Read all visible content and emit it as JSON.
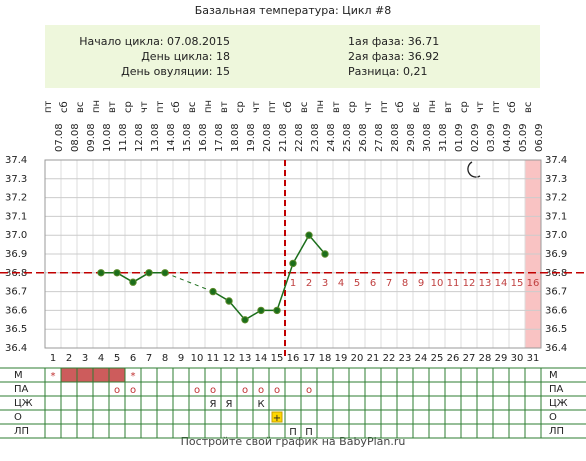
{
  "chart_data": {
    "type": "line",
    "title": "Базальная температура: Цикл #8",
    "info_left": [
      "Начало цикла: 07.08.2015",
      "День цикла: 18",
      "День овуляции: 15"
    ],
    "info_right": [
      "1ая фаза: 36.71",
      "2ая фаза: 36.92",
      "Разница: 0,21"
    ],
    "weekdays": [
      "пт",
      "сб",
      "вс",
      "пн",
      "вт",
      "ср",
      "чт",
      "пт",
      "сб",
      "вс",
      "пн",
      "вт",
      "ср",
      "чт",
      "пт",
      "сб",
      "вс",
      "пн",
      "вт",
      "ср",
      "чт",
      "пт",
      "сб",
      "вс",
      "пн",
      "вт",
      "ср",
      "чт",
      "пт",
      "сб",
      "вс"
    ],
    "dates": [
      "07.08",
      "08.08",
      "09.08",
      "10.08",
      "11.08",
      "12.08",
      "13.08",
      "14.08",
      "15.08",
      "16.08",
      "17.08",
      "18.08",
      "19.08",
      "20.08",
      "21.08",
      "22.08",
      "23.08",
      "24.08",
      "25.08",
      "26.08",
      "27.08",
      "28.08",
      "29.08",
      "30.08",
      "31.08",
      "01.09",
      "02.09",
      "03.09",
      "04.09",
      "05.09",
      "06.09"
    ],
    "categories": [
      1,
      2,
      3,
      4,
      5,
      6,
      7,
      8,
      9,
      10,
      11,
      12,
      13,
      14,
      15,
      16,
      17,
      18,
      19,
      20,
      21,
      22,
      23,
      24,
      25,
      26,
      27,
      28,
      29,
      30,
      31
    ],
    "series": [
      {
        "color": "#1b6e1b",
        "values": [
          null,
          null,
          null,
          36.8,
          36.8,
          36.75,
          36.8,
          36.8,
          null,
          null,
          36.7,
          36.65,
          36.55,
          36.6,
          36.6,
          36.85,
          37.0,
          36.9,
          null,
          null,
          null,
          null,
          null,
          null,
          null,
          null,
          null,
          null,
          null,
          null,
          null
        ]
      }
    ],
    "ylim": [
      36.4,
      37.4
    ],
    "yticks": [
      {
        "value": 36.4,
        "label": "36.4"
      },
      {
        "value": 36.5,
        "label": "36.5"
      },
      {
        "value": 36.6,
        "label": "36.6"
      },
      {
        "value": 36.7,
        "label": "36.7"
      },
      {
        "value": 36.8,
        "label": "36.8"
      },
      {
        "value": 36.9,
        "label": "36.9"
      },
      {
        "value": 37.0,
        "label": "37.0"
      },
      {
        "value": 37.1,
        "label": "37.1"
      },
      {
        "value": 37.2,
        "label": "37.2"
      },
      {
        "value": 37.3,
        "label": "37.3"
      },
      {
        "value": 37.4,
        "label": "37.4"
      }
    ],
    "coverline": 36.8,
    "coverline_color": "#c00000",
    "ovulation_day": 15,
    "luteal_day_labels": [
      1,
      2,
      3,
      4,
      5,
      6,
      7,
      8,
      9,
      10,
      11,
      12,
      13,
      14,
      15,
      16
    ],
    "highlight_day": 31,
    "menstruation_days": [
      2,
      3,
      4,
      5
    ],
    "table_rows": [
      {
        "label": "М",
        "cells": [
          "*",
          null,
          null,
          null,
          null,
          "*",
          null,
          null,
          null,
          null,
          null,
          null,
          null,
          null,
          null,
          null,
          null,
          null,
          null,
          null,
          null,
          null,
          null,
          null,
          null,
          null,
          null,
          null,
          null,
          null,
          null
        ]
      },
      {
        "label": "ПА",
        "cells": [
          null,
          null,
          null,
          null,
          "o",
          "o",
          null,
          null,
          null,
          "o",
          "o",
          null,
          "o",
          "o",
          "o",
          null,
          "o",
          null,
          null,
          null,
          null,
          null,
          null,
          null,
          null,
          null,
          null,
          null,
          null,
          null,
          null
        ]
      },
      {
        "label": "ЦЖ",
        "cells": [
          null,
          null,
          null,
          null,
          null,
          null,
          null,
          null,
          null,
          null,
          "Я",
          "Я",
          null,
          "К",
          null,
          null,
          null,
          null,
          null,
          null,
          null,
          null,
          null,
          null,
          null,
          null,
          null,
          null,
          null,
          null,
          null
        ]
      },
      {
        "label": "О",
        "cells": [
          null,
          null,
          null,
          null,
          null,
          null,
          null,
          null,
          null,
          null,
          null,
          null,
          null,
          null,
          "+",
          null,
          null,
          null,
          null,
          null,
          null,
          null,
          null,
          null,
          null,
          null,
          null,
          null,
          null,
          null,
          null
        ]
      },
      {
        "label": "ЛП",
        "cells": [
          null,
          null,
          null,
          null,
          null,
          null,
          null,
          null,
          null,
          null,
          null,
          null,
          null,
          null,
          null,
          "П",
          "П",
          null,
          null,
          null,
          null,
          null,
          null,
          null,
          null,
          null,
          null,
          null,
          null,
          null,
          null
        ]
      }
    ],
    "footer": "Постройте свой график на BabyPlan.ru"
  }
}
